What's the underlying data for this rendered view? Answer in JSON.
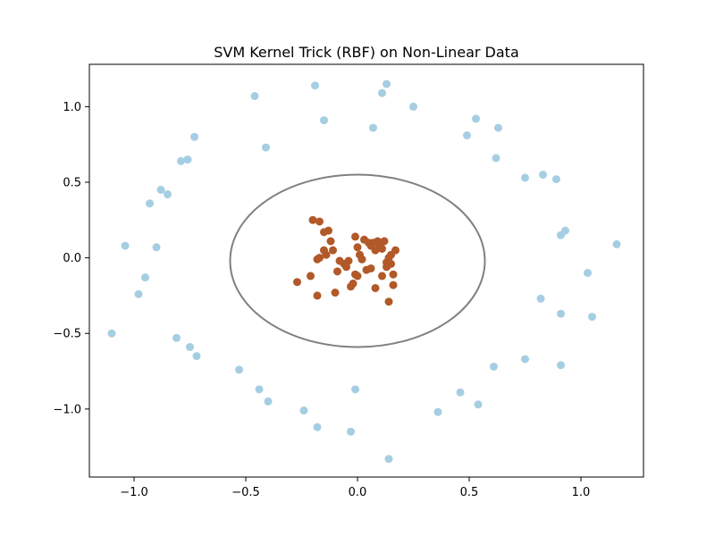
{
  "chart_data": {
    "type": "scatter",
    "title": "SVM Kernel Trick (RBF) on Non-Linear Data",
    "xlabel": "",
    "ylabel": "",
    "xlim": [
      -1.2,
      1.28
    ],
    "ylim": [
      -1.45,
      1.28
    ],
    "xticks": [
      -1.0,
      -0.5,
      0.0,
      0.5,
      1.0
    ],
    "xtick_labels": [
      "−1.0",
      "−0.5",
      "0.0",
      "0.5",
      "1.0"
    ],
    "yticks": [
      1.0,
      0.5,
      0.0,
      -0.5,
      -1.0
    ],
    "ytick_labels": [
      "1.0",
      "0.5",
      "0.0",
      "−0.5",
      "−1.0"
    ],
    "grid": false,
    "decision_boundary": {
      "shape": "ellipse",
      "center": [
        0.0,
        -0.02
      ],
      "radius_x": 0.57,
      "radius_y": 0.57,
      "color": "#808080"
    },
    "series": [
      {
        "class": 0,
        "color": "#a6cee3",
        "x": [
          -0.46,
          -0.19,
          0.11,
          0.13,
          0.25,
          -0.15,
          0.07,
          -0.73,
          -0.41,
          0.53,
          0.63,
          0.49,
          -0.76,
          -0.79,
          0.62,
          0.75,
          0.83,
          0.89,
          -0.88,
          -0.85,
          -0.93,
          0.93,
          0.91,
          -1.04,
          -0.9,
          1.16,
          -0.95,
          1.03,
          -0.98,
          0.82,
          0.91,
          1.05,
          -1.1,
          -0.81,
          -0.75,
          -0.72,
          0.75,
          0.61,
          0.91,
          -0.53,
          -0.44,
          -0.4,
          0.46,
          -0.01,
          0.54,
          0.36,
          -0.24,
          -0.18,
          -0.03,
          0.14
        ],
        "y": [
          1.07,
          1.14,
          1.09,
          1.15,
          1.0,
          0.91,
          0.86,
          0.8,
          0.73,
          0.92,
          0.86,
          0.81,
          0.65,
          0.64,
          0.66,
          0.53,
          0.55,
          0.52,
          0.45,
          0.42,
          0.36,
          0.18,
          0.15,
          0.08,
          0.07,
          0.09,
          -0.13,
          -0.1,
          -0.24,
          -0.27,
          -0.37,
          -0.39,
          -0.5,
          -0.53,
          -0.59,
          -0.65,
          -0.67,
          -0.72,
          -0.71,
          -0.74,
          -0.87,
          -0.95,
          -0.89,
          -0.87,
          -0.97,
          -1.02,
          -1.01,
          -1.12,
          -1.15,
          -1.33
        ]
      },
      {
        "class": 1,
        "color": "#b15928",
        "x": [
          -0.2,
          -0.17,
          -0.15,
          -0.13,
          -0.12,
          -0.15,
          -0.11,
          -0.18,
          -0.17,
          -0.14,
          -0.08,
          -0.06,
          -0.04,
          -0.09,
          -0.05,
          -0.03,
          -0.02,
          -0.21,
          -0.27,
          -0.18,
          -0.1,
          -0.01,
          0.0,
          0.01,
          0.03,
          0.05,
          0.06,
          0.07,
          0.08,
          0.09,
          0.1,
          0.11,
          0.12,
          0.13,
          0.14,
          0.15,
          0.17,
          0.02,
          0.04,
          0.06,
          0.08,
          0.11,
          0.13,
          0.15,
          0.16,
          0.16,
          0.1,
          0.14,
          -0.01,
          0.0
        ],
        "y": [
          0.25,
          0.24,
          0.17,
          0.18,
          0.11,
          0.05,
          0.05,
          -0.01,
          0.0,
          0.02,
          -0.02,
          -0.04,
          -0.02,
          -0.09,
          -0.06,
          -0.19,
          -0.17,
          -0.12,
          -0.16,
          -0.25,
          -0.23,
          0.14,
          0.07,
          0.02,
          0.12,
          0.1,
          0.08,
          0.1,
          0.05,
          0.11,
          0.1,
          0.06,
          0.11,
          -0.03,
          0.0,
          0.02,
          0.05,
          -0.01,
          -0.08,
          -0.07,
          -0.2,
          -0.12,
          -0.06,
          -0.04,
          -0.11,
          -0.18,
          0.08,
          -0.29,
          -0.11,
          -0.12
        ]
      }
    ]
  }
}
